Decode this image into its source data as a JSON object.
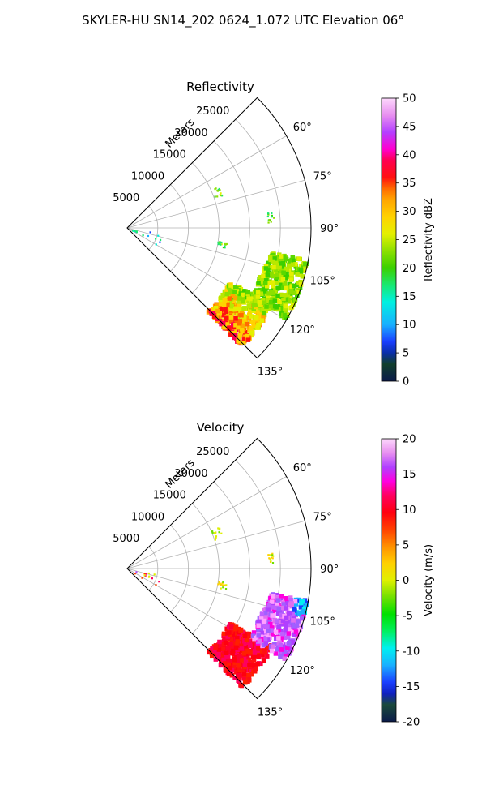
{
  "suptitle": "SKYLER-HU  SN14_202  0624_1.072 UTC Elevation 06°",
  "chart_data": [
    {
      "type": "polar-sector",
      "title": "Reflectivity",
      "radial_label": "Meters",
      "r_ticks": [
        "5000",
        "10000",
        "15000",
        "20000",
        "25000"
      ],
      "r_max": 30000,
      "theta_range_deg": [
        45,
        135
      ],
      "theta_ticks": [
        "60°",
        "75°",
        "90°",
        "105°",
        "120°",
        "135°"
      ],
      "theta_tick_values": [
        60,
        75,
        90,
        105,
        120,
        135
      ],
      "colorbar": {
        "label": "Reflectivity dBZ",
        "range": [
          0,
          50
        ],
        "ticks": [
          "0",
          "5",
          "10",
          "15",
          "20",
          "25",
          "30",
          "35",
          "40",
          "45",
          "50"
        ]
      },
      "echo_regions": [
        {
          "theta": [
            118,
            136
          ],
          "r": [
            19000,
            27000
          ],
          "level": "18–38 dBZ (green–red, max near 135°)"
        },
        {
          "theta": [
            100,
            120
          ],
          "r": [
            23000,
            30000
          ],
          "level": "20–30 dBZ (green–yellow)"
        },
        {
          "theta": [
            66,
            72
          ],
          "r": [
            15000,
            16500
          ],
          "level": "~18 dBZ"
        },
        {
          "theta": [
            84,
            88
          ],
          "r": [
            23000,
            24000
          ],
          "level": "~25 dBZ"
        },
        {
          "theta": [
            98,
            102
          ],
          "r": [
            15000,
            16500
          ],
          "level": "~18 dBZ"
        },
        {
          "theta": [
            100,
            124
          ],
          "r": [
            0,
            6000
          ],
          "level": "5–20 dBZ scattered"
        }
      ]
    },
    {
      "type": "polar-sector",
      "title": "Velocity",
      "radial_label": "Meters",
      "r_ticks": [
        "5000",
        "10000",
        "15000",
        "20000",
        "25000"
      ],
      "r_max": 30000,
      "theta_range_deg": [
        45,
        135
      ],
      "theta_ticks": [
        "60°",
        "75°",
        "90°",
        "105°",
        "120°",
        "135°"
      ],
      "theta_tick_values": [
        60,
        75,
        90,
        105,
        120,
        135
      ],
      "colorbar": {
        "label": "Velocity (m/s)",
        "range": [
          -20,
          20
        ],
        "ticks": [
          "-20",
          "-15",
          "-10",
          "-5",
          "0",
          "5",
          "10",
          "15",
          "20"
        ]
      },
      "echo_regions": [
        {
          "theta": [
            118,
            136
          ],
          "r": [
            19000,
            27000
          ],
          "level": "~10 m/s (red)"
        },
        {
          "theta": [
            100,
            120
          ],
          "r": [
            23000,
            30000
          ],
          "level": "~15 m/s (magenta/violet), -10 m/s near 103°"
        },
        {
          "theta": [
            66,
            72
          ],
          "r": [
            15000,
            16500
          ],
          "level": "~0 m/s"
        },
        {
          "theta": [
            84,
            88
          ],
          "r": [
            23000,
            24000
          ],
          "level": "~-2 m/s"
        },
        {
          "theta": [
            98,
            102
          ],
          "r": [
            15000,
            16500
          ],
          "level": "~2 m/s"
        },
        {
          "theta": [
            100,
            124
          ],
          "r": [
            0,
            6000
          ],
          "level": "mixed"
        }
      ]
    }
  ]
}
